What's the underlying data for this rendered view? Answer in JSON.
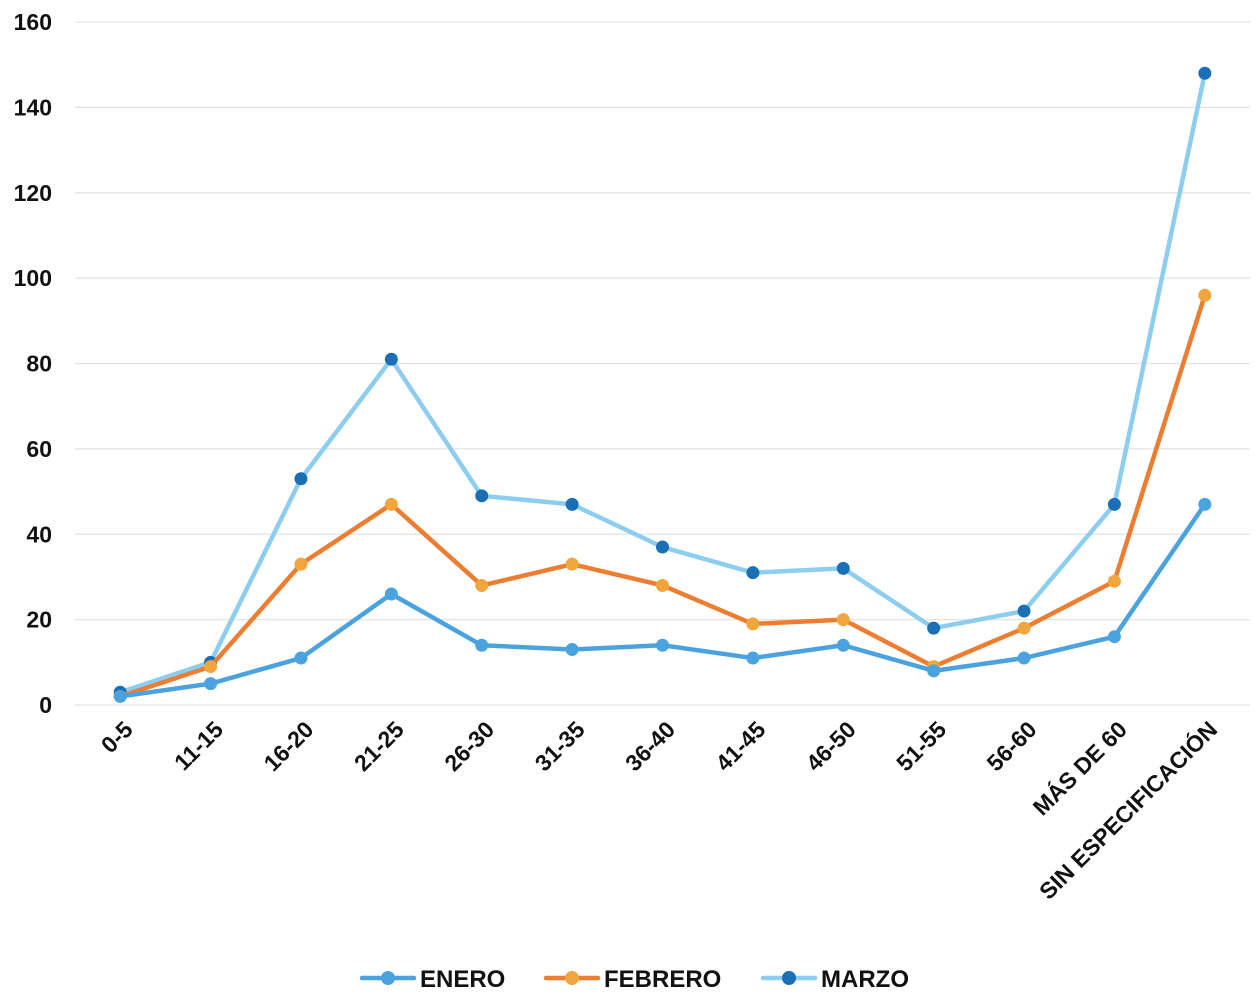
{
  "chart_data": {
    "type": "line",
    "title": "",
    "xlabel": "",
    "ylabel": "",
    "categories": [
      "0-5",
      "11-15",
      "16-20",
      "21-25",
      "26-30",
      "31-35",
      "36-40",
      "41-45",
      "46-50",
      "51-55",
      "56-60",
      "MÁS DE 60",
      "SIN ESPECIFICACIÓN"
    ],
    "ylim": [
      0,
      160
    ],
    "yticks": [
      0,
      20,
      40,
      60,
      80,
      100,
      120,
      140,
      160
    ],
    "grid": "horizontal",
    "legend_position": "bottom",
    "series": [
      {
        "name": "ENERO",
        "color": "#4aa3df",
        "marker_color": "#4aa3df",
        "values": [
          2,
          5,
          11,
          26,
          14,
          13,
          14,
          11,
          14,
          8,
          11,
          16,
          47
        ]
      },
      {
        "name": "FEBRERO",
        "color": "#ed7d31",
        "marker_color": "#f0a63c",
        "values": [
          2,
          9,
          33,
          47,
          28,
          33,
          28,
          19,
          20,
          9,
          18,
          29,
          96
        ]
      },
      {
        "name": "MARZO",
        "color": "#8ccdf0",
        "marker_color": "#1a6fb5",
        "values": [
          3,
          10,
          53,
          81,
          49,
          47,
          37,
          31,
          32,
          18,
          22,
          47,
          148
        ]
      }
    ]
  }
}
